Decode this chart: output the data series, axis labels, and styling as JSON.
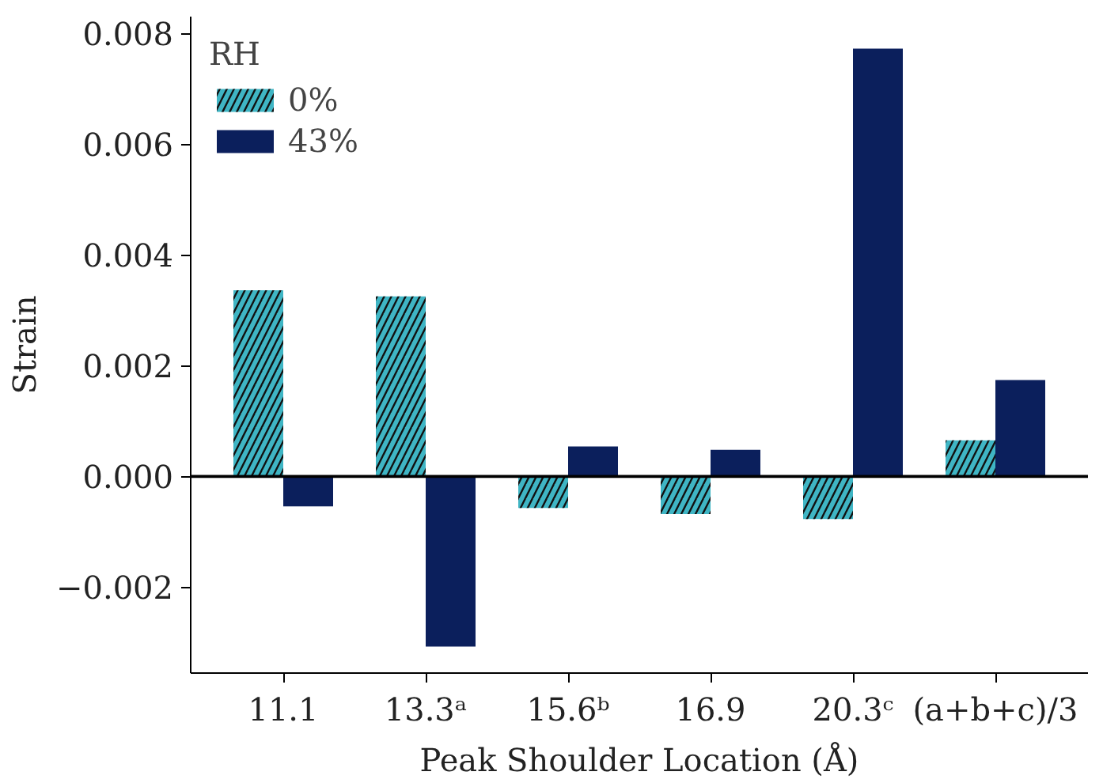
{
  "chart_data": {
    "type": "bar",
    "xlabel": "Peak Shoulder Location (Å)",
    "ylabel": "Strain",
    "legend_title": "RH",
    "categories": [
      "11.1",
      "13.3ᵃ",
      "15.6ᵇ",
      "16.9",
      "20.3ᶜ",
      "(a+b+c)/3"
    ],
    "series": [
      {
        "name": "0%",
        "color": "#3fb5c4",
        "values": [
          0.00336,
          0.00325,
          -0.00057,
          -0.00068,
          -0.00077,
          0.00065
        ]
      },
      {
        "name": "43%",
        "color": "#0b1f5c",
        "values": [
          -0.00054,
          -0.00307,
          0.00054,
          0.00048,
          0.00772,
          0.00174
        ]
      }
    ],
    "ylim": [
      -0.00355,
      0.0083
    ],
    "yticks": [
      {
        "value": -0.002,
        "label": "−0.002"
      },
      {
        "value": 0,
        "label": "0.000"
      },
      {
        "value": 0.002,
        "label": "0.002"
      },
      {
        "value": 0.004,
        "label": "0.004"
      },
      {
        "value": 0.006,
        "label": "0.006"
      },
      {
        "value": 0.008,
        "label": "0.008"
      }
    ],
    "ref_lines": [
      {
        "axis": "y",
        "value": 0,
        "color": "#000000"
      }
    ],
    "grid": false,
    "legend": "top left"
  }
}
